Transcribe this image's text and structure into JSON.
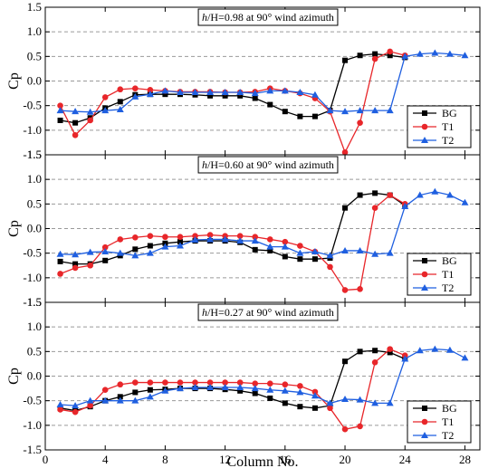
{
  "chart_data": [
    {
      "type": "line",
      "annotation": {
        "prefix": "h",
        "suffix": "/H=0.98 at 90° wind azimuth"
      },
      "ylabel": "Cp",
      "xlim": [
        0,
        29
      ],
      "ylim": [
        -1.5,
        1.5
      ],
      "grid": true,
      "legend_position": "lower right",
      "series": [
        {
          "name": "BG",
          "color": "#000000",
          "marker": "square",
          "x": [
            1,
            2,
            3,
            4,
            5,
            6,
            7,
            8,
            9,
            10,
            11,
            12,
            13,
            14,
            15,
            16,
            17,
            18,
            19,
            20,
            21,
            22,
            23,
            24
          ],
          "y": [
            -0.8,
            -0.85,
            -0.75,
            -0.55,
            -0.42,
            -0.28,
            -0.27,
            -0.27,
            -0.27,
            -0.28,
            -0.3,
            -0.3,
            -0.3,
            -0.35,
            -0.48,
            -0.62,
            -0.72,
            -0.72,
            -0.6,
            0.42,
            0.52,
            0.55,
            0.52,
            0.48
          ]
        },
        {
          "name": "T1",
          "color": "#e8262a",
          "marker": "circle",
          "x": [
            1,
            2,
            3,
            4,
            5,
            6,
            7,
            8,
            9,
            10,
            11,
            12,
            13,
            14,
            15,
            16,
            17,
            18,
            19,
            20,
            21,
            22,
            23,
            24
          ],
          "y": [
            -0.5,
            -1.1,
            -0.8,
            -0.33,
            -0.17,
            -0.15,
            -0.18,
            -0.2,
            -0.22,
            -0.22,
            -0.22,
            -0.23,
            -0.23,
            -0.22,
            -0.15,
            -0.2,
            -0.25,
            -0.35,
            -0.62,
            -1.45,
            -0.85,
            0.45,
            0.6,
            0.52
          ]
        },
        {
          "name": "T2",
          "color": "#1f5fe0",
          "marker": "triangle",
          "x": [
            1,
            2,
            3,
            4,
            5,
            6,
            7,
            8,
            9,
            10,
            11,
            12,
            13,
            14,
            15,
            16,
            17,
            18,
            19,
            20,
            21,
            22,
            23,
            24,
            25,
            26,
            27,
            28
          ],
          "y": [
            -0.6,
            -0.62,
            -0.63,
            -0.6,
            -0.58,
            -0.32,
            -0.27,
            -0.2,
            -0.23,
            -0.23,
            -0.23,
            -0.23,
            -0.23,
            -0.25,
            -0.2,
            -0.2,
            -0.23,
            -0.28,
            -0.6,
            -0.62,
            -0.6,
            -0.6,
            -0.6,
            0.5,
            0.55,
            0.57,
            0.55,
            0.52
          ]
        }
      ]
    },
    {
      "type": "line",
      "annotation": {
        "prefix": "h",
        "suffix": "/H=0.60 at 90° wind azimuth"
      },
      "ylabel": "Cp",
      "xlim": [
        0,
        29
      ],
      "ylim": [
        -1.5,
        1.5
      ],
      "grid": true,
      "legend_position": "lower right",
      "series": [
        {
          "name": "BG",
          "color": "#000000",
          "marker": "square",
          "x": [
            1,
            2,
            3,
            4,
            5,
            6,
            7,
            8,
            9,
            10,
            11,
            12,
            13,
            14,
            15,
            16,
            17,
            18,
            19,
            20,
            21,
            22,
            23,
            24
          ],
          "y": [
            -0.67,
            -0.72,
            -0.72,
            -0.65,
            -0.55,
            -0.42,
            -0.35,
            -0.3,
            -0.27,
            -0.25,
            -0.25,
            -0.25,
            -0.28,
            -0.43,
            -0.45,
            -0.57,
            -0.62,
            -0.62,
            -0.6,
            0.42,
            0.68,
            0.72,
            0.68,
            0.47
          ]
        },
        {
          "name": "T1",
          "color": "#e8262a",
          "marker": "circle",
          "x": [
            1,
            2,
            3,
            4,
            5,
            6,
            7,
            8,
            9,
            10,
            11,
            12,
            13,
            14,
            15,
            16,
            17,
            18,
            19,
            20,
            21,
            22,
            23,
            24
          ],
          "y": [
            -0.92,
            -0.8,
            -0.75,
            -0.38,
            -0.22,
            -0.18,
            -0.15,
            -0.17,
            -0.17,
            -0.15,
            -0.13,
            -0.15,
            -0.15,
            -0.17,
            -0.22,
            -0.27,
            -0.35,
            -0.47,
            -0.78,
            -1.25,
            -1.23,
            0.42,
            0.68,
            0.5
          ]
        },
        {
          "name": "T2",
          "color": "#1f5fe0",
          "marker": "triangle",
          "x": [
            1,
            2,
            3,
            4,
            5,
            6,
            7,
            8,
            9,
            10,
            11,
            12,
            13,
            14,
            15,
            16,
            17,
            18,
            19,
            20,
            21,
            22,
            23,
            24,
            25,
            26,
            27,
            28
          ],
          "y": [
            -0.52,
            -0.53,
            -0.48,
            -0.47,
            -0.5,
            -0.55,
            -0.5,
            -0.37,
            -0.35,
            -0.23,
            -0.22,
            -0.22,
            -0.25,
            -0.25,
            -0.37,
            -0.37,
            -0.5,
            -0.47,
            -0.55,
            -0.45,
            -0.45,
            -0.52,
            -0.5,
            0.45,
            0.68,
            0.75,
            0.68,
            0.53
          ]
        }
      ]
    },
    {
      "type": "line",
      "annotation": {
        "prefix": "h",
        "suffix": "/H=0.27 at 90° wind azimuth"
      },
      "ylabel": "Cp",
      "xlabel": "Column No.",
      "xlim": [
        0,
        29
      ],
      "ylim": [
        -1.5,
        1.5
      ],
      "grid": true,
      "legend_position": "lower right",
      "series": [
        {
          "name": "BG",
          "color": "#000000",
          "marker": "square",
          "x": [
            1,
            2,
            3,
            4,
            5,
            6,
            7,
            8,
            9,
            10,
            11,
            12,
            13,
            14,
            15,
            16,
            17,
            18,
            19,
            20,
            21,
            22,
            23,
            24
          ],
          "y": [
            -0.65,
            -0.7,
            -0.62,
            -0.5,
            -0.42,
            -0.33,
            -0.28,
            -0.27,
            -0.25,
            -0.25,
            -0.25,
            -0.27,
            -0.3,
            -0.35,
            -0.45,
            -0.55,
            -0.62,
            -0.65,
            -0.6,
            0.3,
            0.5,
            0.52,
            0.48,
            0.35
          ]
        },
        {
          "name": "T1",
          "color": "#e8262a",
          "marker": "circle",
          "x": [
            1,
            2,
            3,
            4,
            5,
            6,
            7,
            8,
            9,
            10,
            11,
            12,
            13,
            14,
            15,
            16,
            17,
            18,
            19,
            20,
            21,
            22,
            23,
            24
          ],
          "y": [
            -0.68,
            -0.73,
            -0.6,
            -0.28,
            -0.17,
            -0.13,
            -0.13,
            -0.13,
            -0.13,
            -0.13,
            -0.13,
            -0.13,
            -0.13,
            -0.15,
            -0.15,
            -0.17,
            -0.2,
            -0.32,
            -0.65,
            -1.08,
            -1.02,
            0.28,
            0.55,
            0.42
          ]
        },
        {
          "name": "T2",
          "color": "#1f5fe0",
          "marker": "triangle",
          "x": [
            1,
            2,
            3,
            4,
            5,
            6,
            7,
            8,
            9,
            10,
            11,
            12,
            13,
            14,
            15,
            16,
            17,
            18,
            19,
            20,
            21,
            22,
            23,
            24,
            25,
            26,
            27,
            28
          ],
          "y": [
            -0.58,
            -0.6,
            -0.5,
            -0.5,
            -0.5,
            -0.5,
            -0.42,
            -0.3,
            -0.25,
            -0.23,
            -0.23,
            -0.23,
            -0.23,
            -0.25,
            -0.28,
            -0.3,
            -0.33,
            -0.4,
            -0.55,
            -0.47,
            -0.48,
            -0.55,
            -0.55,
            0.35,
            0.52,
            0.55,
            0.53,
            0.37
          ]
        }
      ]
    }
  ],
  "x_ticks": [
    0,
    4,
    8,
    12,
    16,
    20,
    24,
    28
  ],
  "y_ticks": [
    -1.5,
    -1.0,
    -0.5,
    0.0,
    0.5,
    1.0,
    1.5
  ],
  "y_tick_labels": [
    "-1.5",
    "-1.0",
    "-0.5",
    "0.0",
    "0.5",
    "1.0",
    "1.5"
  ]
}
